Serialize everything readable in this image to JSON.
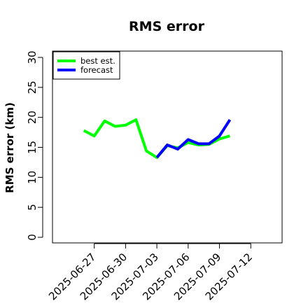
{
  "chart_data": {
    "type": "line",
    "title": "RMS error",
    "xlabel": "",
    "ylabel": "RMS error (km)",
    "ylim": [
      0,
      30
    ],
    "yticks": [
      0,
      5,
      10,
      15,
      20,
      25,
      30
    ],
    "xlim": [
      "2025-06-23",
      "2025-07-15"
    ],
    "xticks": [
      {
        "date": "2025-06-27",
        "label": "2025-06-27",
        "color": "#000000"
      },
      {
        "date": "2025-06-30",
        "label": "2025-06-30",
        "color": "#000000"
      },
      {
        "date": "2025-07-03",
        "label": "2025-07-03",
        "color": "#228B22"
      },
      {
        "date": "2025-07-06",
        "label": "2025-07-06",
        "color": "#000000"
      },
      {
        "date": "2025-07-09",
        "label": "2025-07-09",
        "color": "#000000"
      },
      {
        "date": "2025-07-12",
        "label": "2025-07-12",
        "color": "#000000"
      }
    ],
    "legend_position": "top-left",
    "grid": false,
    "series": [
      {
        "name": "best est.",
        "color": "#00FF00",
        "points": [
          {
            "x": "2025-06-26",
            "y": 17.8
          },
          {
            "x": "2025-06-27",
            "y": 16.9
          },
          {
            "x": "2025-06-28",
            "y": 19.4
          },
          {
            "x": "2025-06-29",
            "y": 18.5
          },
          {
            "x": "2025-06-30",
            "y": 18.7
          },
          {
            "x": "2025-07-01",
            "y": 19.6
          },
          {
            "x": "2025-07-02",
            "y": 14.4
          },
          {
            "x": "2025-07-03",
            "y": 13.3
          },
          {
            "x": "2025-07-04",
            "y": 15.3
          },
          {
            "x": "2025-07-05",
            "y": 14.9
          },
          {
            "x": "2025-07-06",
            "y": 15.8
          },
          {
            "x": "2025-07-07",
            "y": 15.4
          },
          {
            "x": "2025-07-08",
            "y": 15.5
          },
          {
            "x": "2025-07-09",
            "y": 16.4
          },
          {
            "x": "2025-07-10",
            "y": 16.9
          }
        ]
      },
      {
        "name": "forecast",
        "color": "#0000FF",
        "points": [
          {
            "x": "2025-07-03",
            "y": 13.3
          },
          {
            "x": "2025-07-04",
            "y": 15.4
          },
          {
            "x": "2025-07-05",
            "y": 14.7
          },
          {
            "x": "2025-07-06",
            "y": 16.3
          },
          {
            "x": "2025-07-07",
            "y": 15.6
          },
          {
            "x": "2025-07-08",
            "y": 15.6
          },
          {
            "x": "2025-07-09",
            "y": 16.9
          },
          {
            "x": "2025-07-10",
            "y": 19.6
          }
        ]
      }
    ]
  }
}
